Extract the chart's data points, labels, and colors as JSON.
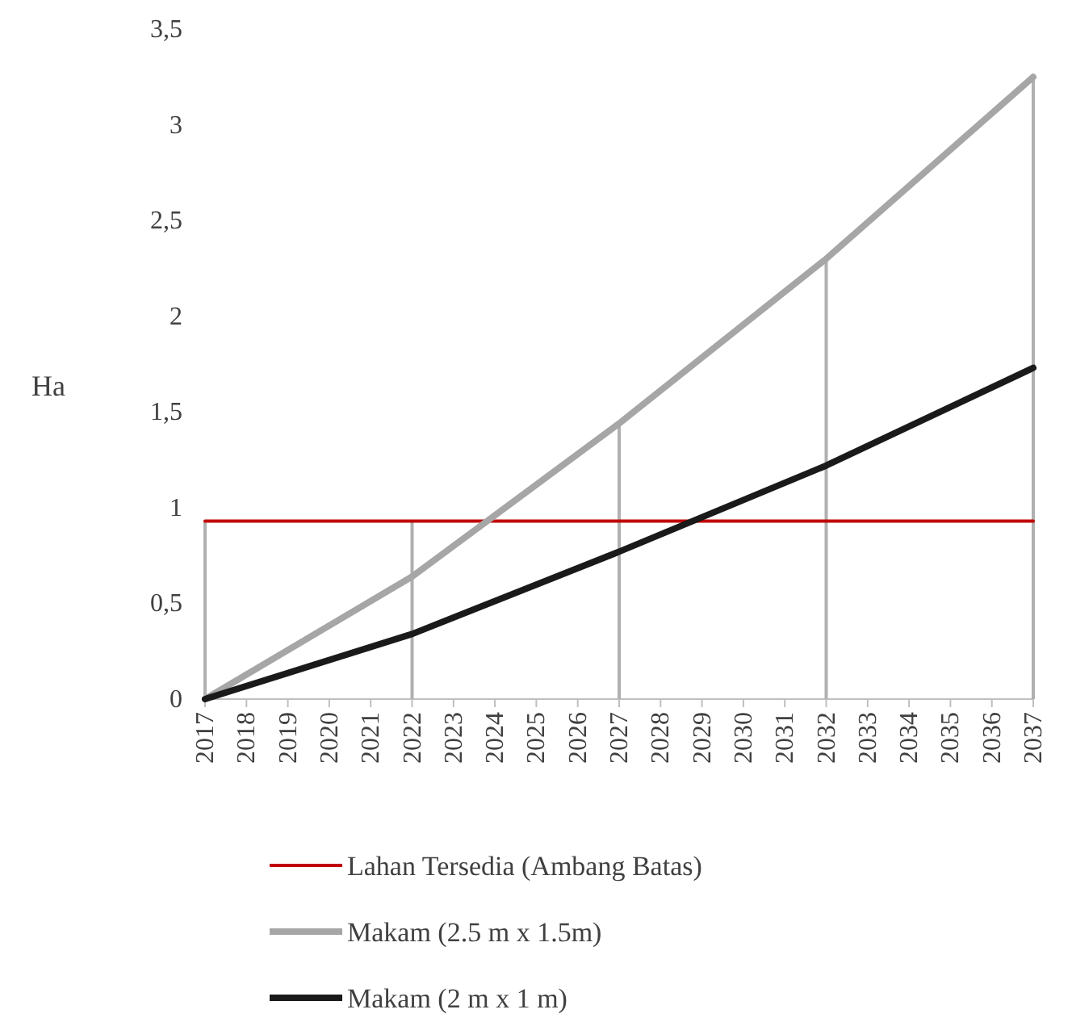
{
  "chart_data": {
    "type": "line",
    "ylabel": "Ha",
    "categories": [
      "2017",
      "2018",
      "2019",
      "2020",
      "2021",
      "2022",
      "2023",
      "2024",
      "2025",
      "2026",
      "2027",
      "2028",
      "2029",
      "2030",
      "2031",
      "2032",
      "2033",
      "2034",
      "2035",
      "2036",
      "2037"
    ],
    "ylim": [
      0,
      3.5
    ],
    "yticks": [
      0,
      {
        "value": 0.5,
        "label": "0,5"
      },
      1,
      {
        "value": 1.5,
        "label": "1,5"
      },
      2,
      {
        "value": 2.5,
        "label": "2,5"
      },
      3,
      {
        "value": 3.5,
        "label": "3,5"
      }
    ],
    "series": [
      {
        "type": "bar",
        "color": "#b0b0b0",
        "values": [
          0.93,
          null,
          null,
          null,
          null,
          0.93,
          null,
          null,
          null,
          null,
          1.44,
          null,
          null,
          null,
          null,
          2.3,
          null,
          null,
          null,
          null,
          3.25
        ]
      },
      {
        "name": "Lahan Tersedia (Ambang Batas)",
        "color": "#c00000",
        "values": [
          0.93,
          null,
          null,
          null,
          null,
          0.93,
          null,
          null,
          null,
          null,
          0.93,
          null,
          null,
          null,
          null,
          0.93,
          null,
          null,
          null,
          null,
          0.93
        ]
      },
      {
        "name": "Makam (2.5 m x 1.5m)",
        "color": "#a6a6a6",
        "values": [
          0,
          null,
          null,
          null,
          null,
          0.64,
          null,
          null,
          null,
          null,
          1.44,
          null,
          null,
          null,
          null,
          2.3,
          null,
          null,
          null,
          null,
          3.25
        ]
      },
      {
        "name": "Makam (2 m x 1 m)",
        "color": "#1a1a1a",
        "values": [
          0,
          null,
          null,
          null,
          null,
          0.34,
          null,
          null,
          null,
          null,
          0.77,
          null,
          null,
          null,
          null,
          1.22,
          null,
          null,
          null,
          null,
          1.73
        ]
      }
    ],
    "grid": false,
    "legend": "bottom",
    "marker": "none",
    "line_style": "solid"
  }
}
